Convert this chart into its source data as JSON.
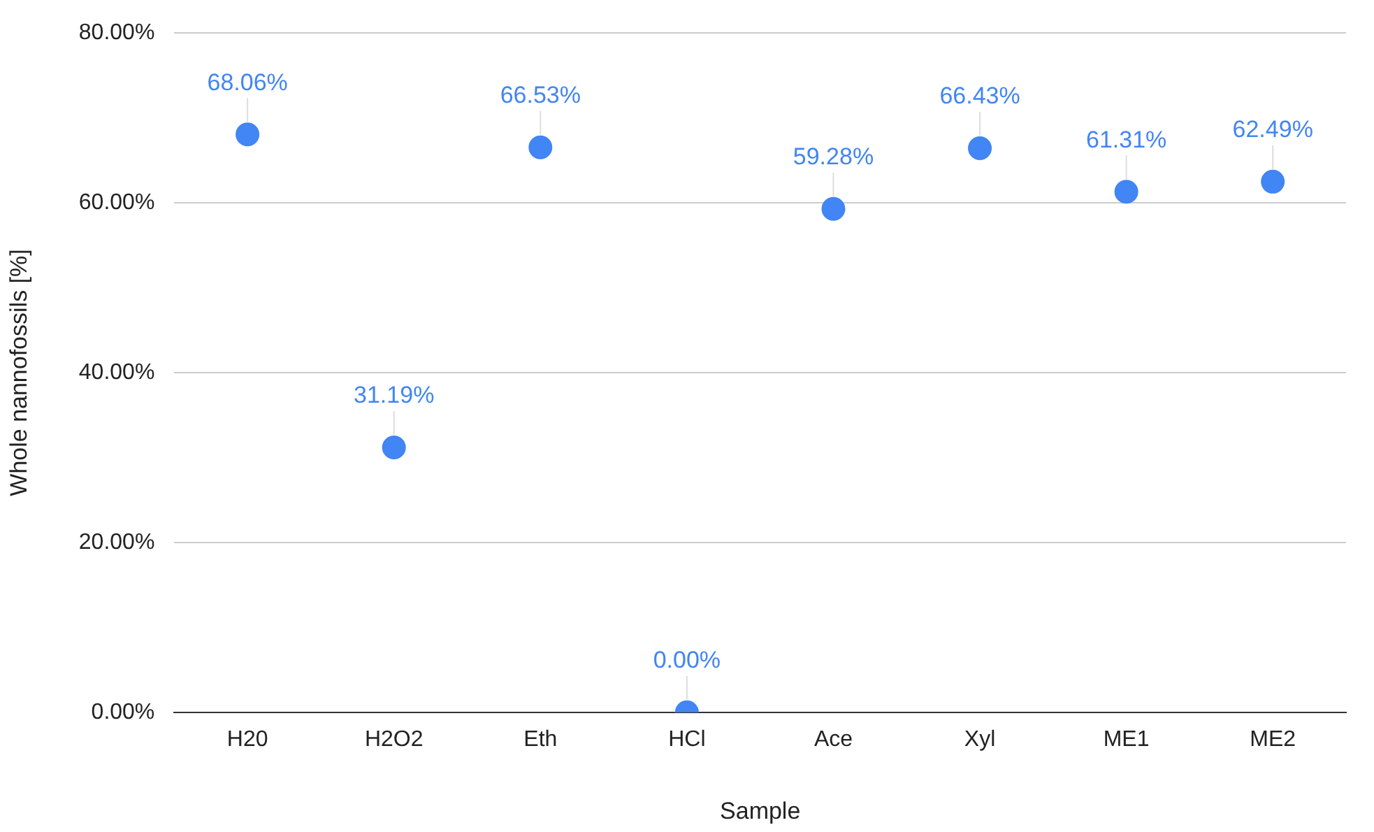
{
  "chart_data": {
    "type": "scatter",
    "xlabel": "Sample",
    "ylabel": "Whole nannofossils [%]",
    "categories": [
      "H20",
      "H2O2",
      "Eth",
      "HCl",
      "Ace",
      "Xyl",
      "ME1",
      "ME2"
    ],
    "series": [
      {
        "color": "#4285f4",
        "values": [
          68.06,
          31.19,
          66.53,
          0,
          59.28,
          66.43,
          61.31,
          62.49
        ],
        "value_labels": [
          "68.06%",
          "31.19%",
          "66.53%",
          "0.00%",
          "59.28%",
          "66.43%",
          "61.31%",
          "62.49%"
        ]
      }
    ],
    "ylim": [
      0,
      80
    ],
    "yticks": [
      {
        "value": 0,
        "label": "0.00%"
      },
      {
        "value": 20,
        "label": "20.00%"
      },
      {
        "value": 40,
        "label": "40.00%"
      },
      {
        "value": 60,
        "label": "60.00%"
      },
      {
        "value": 80,
        "label": "80.00%"
      }
    ],
    "grid": "y",
    "legend": false,
    "marker": "circle"
  }
}
